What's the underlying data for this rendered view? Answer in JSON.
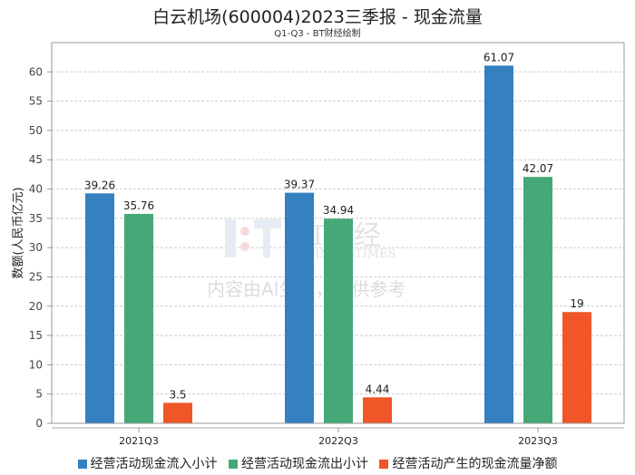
{
  "chart_data": {
    "type": "bar",
    "title": "白云机场(600004)2023三季报 - 现金流量",
    "subtitle": "Q1-Q3 - BT财经绘制",
    "ylabel": "数额(人民币亿元)",
    "xlabel": "",
    "ylim": [
      0,
      65
    ],
    "yticks": [
      0,
      5,
      10,
      15,
      20,
      25,
      30,
      35,
      40,
      45,
      50,
      55,
      60
    ],
    "grid": true,
    "legend_position": "bottom",
    "categories": [
      "2021Q3",
      "2022Q3",
      "2023Q3"
    ],
    "series": [
      {
        "name": "经营活动现金流入小计",
        "color": "#3480c0",
        "values": [
          39.26,
          39.37,
          61.07
        ]
      },
      {
        "name": "经营活动现金流出小计",
        "color": "#46a877",
        "values": [
          35.76,
          34.94,
          42.07
        ]
      },
      {
        "name": "经营活动产生的现金流量净额",
        "color": "#f05628",
        "values": [
          3.5,
          4.44,
          19
        ]
      }
    ]
  },
  "watermark": {
    "logo": "BT财经",
    "logo_sub": "BUSINESSTIMES",
    "notice": "内容由AI生成，仅供参考"
  }
}
